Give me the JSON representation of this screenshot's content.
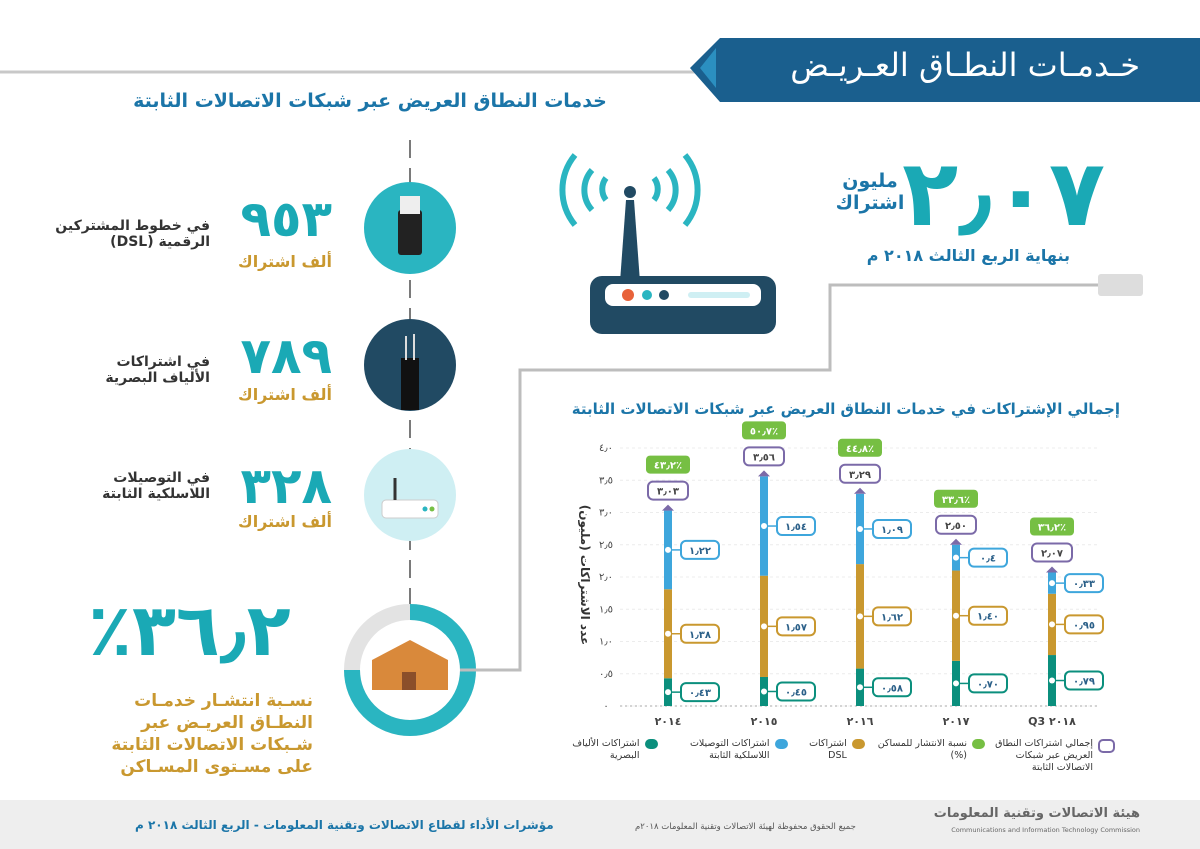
{
  "header": {
    "banner": "خـدمـات النطـاق العـريـض",
    "subtitle": "خدمات النطاق العريض عبر شبكات الاتصالات الثابتة"
  },
  "headline": {
    "value": "٢٫٠٧",
    "unit": "مليون اشتراك",
    "note": "بنهاية الربع الثالث ٢٠١٨ م"
  },
  "stats": [
    {
      "value": "٩٥٣",
      "unit": "ألف اشتراك",
      "label": "في خطوط المشتركين الرقمية (DSL)"
    },
    {
      "value": "٧٨٩",
      "unit": "ألف اشتراك",
      "label": "في اشتراكات الألياف البصرية"
    },
    {
      "value": "٣٢٨",
      "unit": "ألف اشتراك",
      "label": "في التوصيلات اللاسلكية الثابتة"
    }
  ],
  "penetration": {
    "value": "٣٦٫٢٪",
    "text": "نسـبة انتشـار خدمـات النطـاق العريـض عبر شـبكات الاتصالات الثابتة على مسـتوى المسـاكن"
  },
  "chart_data": {
    "type": "bar",
    "stacked": true,
    "title": "إجمالي الإشتراكات في خدمات النطاق العريض عبر شبكات الاتصالات الثابتة",
    "y_label": "عدد الاشتراكات (مليون)",
    "categories": [
      "٢٠١٤",
      "٢٠١٥",
      "٢٠١٦",
      "٢٠١٧",
      "Q3 ٢٠١٨"
    ],
    "series": [
      {
        "name": "اشتراكات الألياف البصرية",
        "color": "#0b8f7d",
        "values": [
          0.43,
          0.45,
          0.58,
          0.7,
          0.79
        ],
        "value_labels": [
          "٠٫٤٣",
          "٠٫٤٥",
          "٠٫٥٨",
          "٠٫٧٠",
          "٠٫٧٩"
        ]
      },
      {
        "name": "اشتراكات DSL",
        "color": "#c9982f",
        "values": [
          1.38,
          1.57,
          1.62,
          1.4,
          0.95
        ],
        "value_labels": [
          "١٫٣٨",
          "١٫٥٧",
          "١٫٦٢",
          "١٫٤٠",
          "٠٫٩٥"
        ]
      },
      {
        "name": "اشتراكات التوصيلات اللاسلكية الثابتة",
        "color": "#3ea6dc",
        "values": [
          1.22,
          1.54,
          1.09,
          0.4,
          0.33
        ],
        "value_labels": [
          "١٫٢٢",
          "١٫٥٤",
          "١٫٠٩",
          "٠٫٤",
          "٠٫٣٣"
        ]
      }
    ],
    "total": {
      "name": "إجمالي اشتراكات النطاق العريض عبر شبكات الاتصالات الثابتة",
      "color": "#7b6aa8",
      "values": [
        3.03,
        3.56,
        3.29,
        2.5,
        2.07
      ],
      "value_labels": [
        "٣٫٠٣",
        "٣٫٥٦",
        "٣٫٢٩",
        "٢٫٥٠",
        "٢٫٠٧"
      ]
    },
    "penetration": {
      "name": "نسبة الانتشار للمساكن (%)",
      "color": "#76bf43",
      "values": [
        43.2,
        50.7,
        44.8,
        33.6,
        36.2
      ],
      "value_labels": [
        "٤٣٫٢٪",
        "٥٠٫٧٪",
        "٤٤٫٨٪",
        "٣٣٫٦٪",
        "٣٦٫٢٪"
      ]
    },
    "ylim": [
      0,
      4
    ],
    "yticks": [
      {
        "value": 0,
        "label": "٠"
      },
      {
        "value": 0.5,
        "label": "٠٫٥"
      },
      {
        "value": 1,
        "label": "١٫٠"
      },
      {
        "value": 1.5,
        "label": "١٫٥"
      },
      {
        "value": 2,
        "label": "٢٫٠"
      },
      {
        "value": 2.5,
        "label": "٢٫٥"
      },
      {
        "value": 3,
        "label": "٣٫٠"
      },
      {
        "value": 3.5,
        "label": "٣٫٥"
      },
      {
        "value": 4,
        "label": "٤٫٠"
      }
    ],
    "grid": true
  },
  "footer": {
    "left": "مؤشرات الأداء لقطاع الاتصالات وتقنية المعلومات - الربع الثالث ٢٠١٨ م",
    "center": "جميع الحقوق محفوظة لهيئة الاتصالات وتقنية المعلومات ٢٠١٨م",
    "logo_ar": "هيئة الاتصالات وتقنية المعلومات",
    "logo_en": "Communications and Information Technology Commission"
  }
}
